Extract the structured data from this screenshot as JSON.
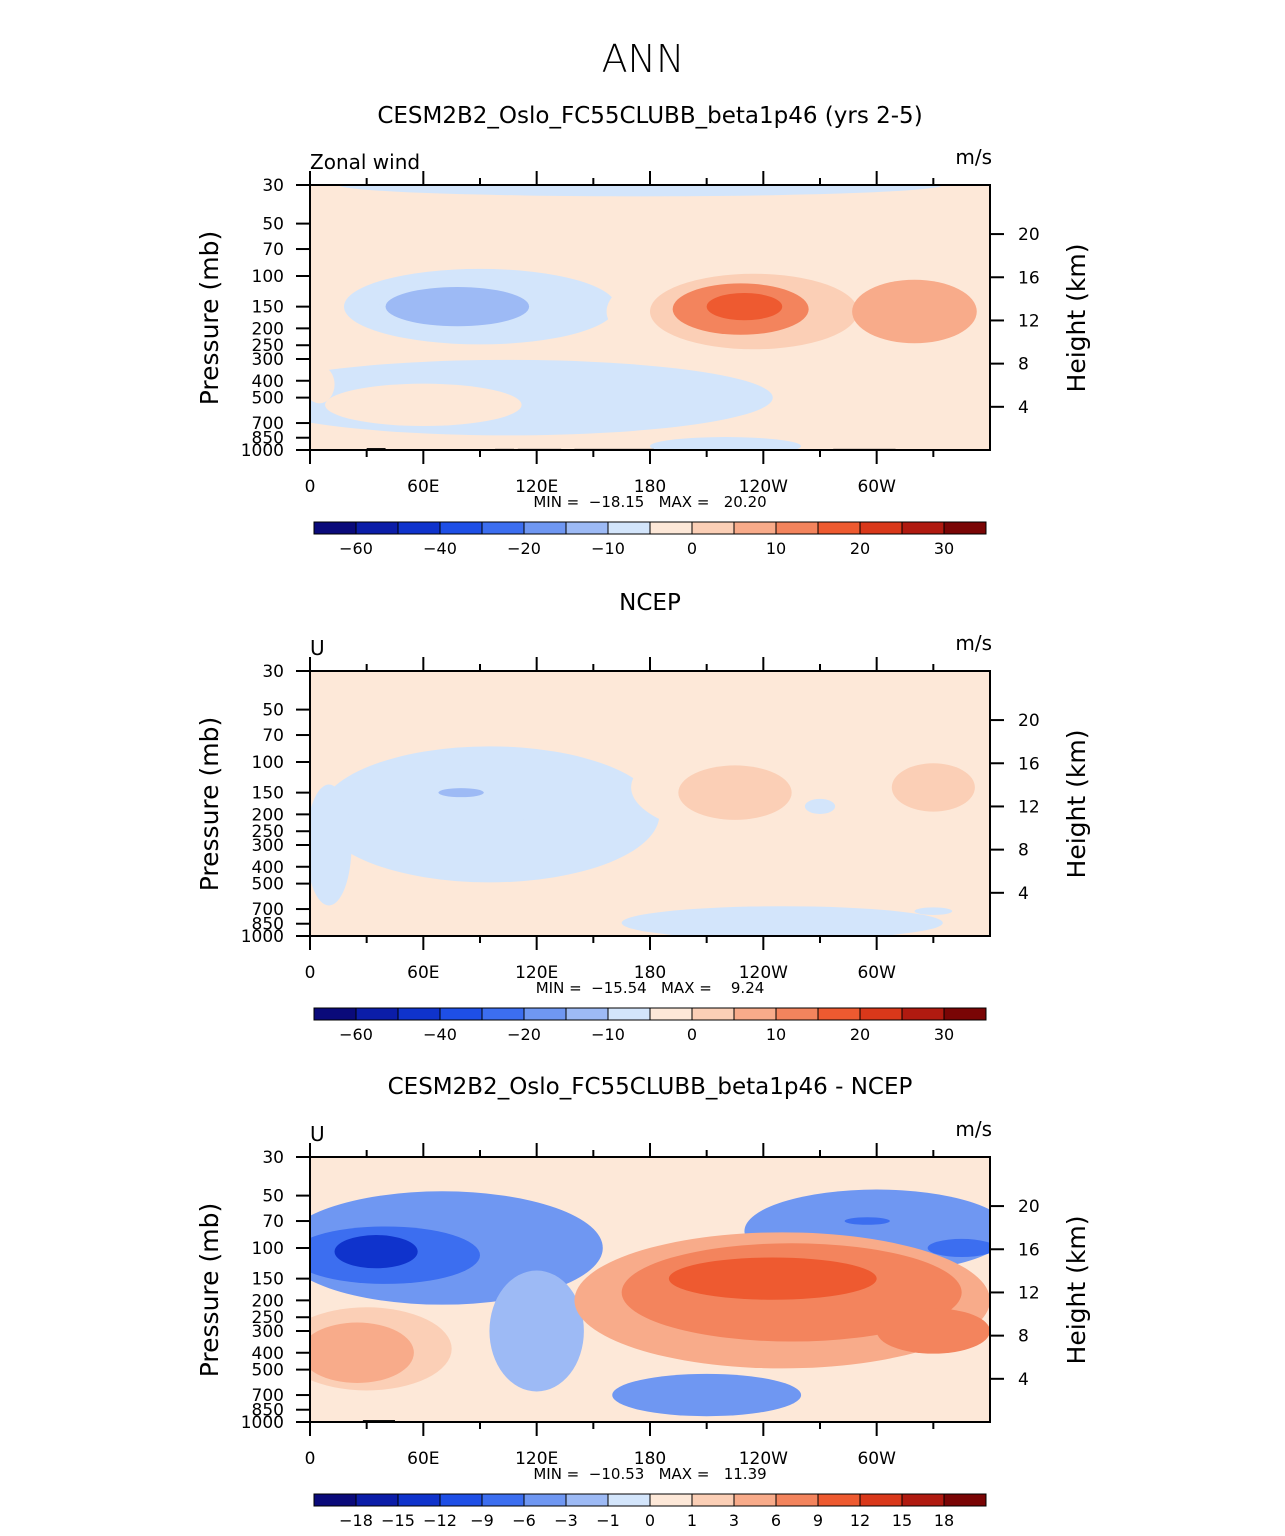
{
  "figure": {
    "title": "ANN"
  },
  "colors": {
    "neg": [
      "#0a0a7a",
      "#0b1da8",
      "#0f33cc",
      "#1e4fe6",
      "#3c6ef0",
      "#6f97f2",
      "#9dbaf5",
      "#d3e5fb"
    ],
    "pos": [
      "#fde8d8",
      "#fbcfb6",
      "#f8ab8a",
      "#f3845d",
      "#ee5a30",
      "#d9381a",
      "#b01a10",
      "#7a0505"
    ]
  },
  "chart_data": [
    {
      "type": "heatmap",
      "title": "CESM2B2_Oslo_FC55CLUBB_beta1p46 (yrs 2-5)",
      "left_label": "Zonal wind",
      "units": "m/s",
      "ylabel": "Pressure (mb)",
      "ylabel_right": "Height (km)",
      "stats": "MIN =  −18.15   MAX =   20.20",
      "ylim": [
        1000,
        30
      ],
      "p_ticks": [
        1000,
        850,
        700,
        500,
        400,
        300,
        250,
        200,
        150,
        100,
        70,
        50,
        30
      ],
      "height_ticks": [
        4,
        8,
        12,
        16,
        20
      ],
      "x_ticks": [
        {
          "lon": 0,
          "label": "0"
        },
        {
          "lon": 60,
          "label": "60E"
        },
        {
          "lon": 120,
          "label": "120E"
        },
        {
          "lon": 180,
          "label": "180"
        },
        {
          "lon": 240,
          "label": "120W"
        },
        {
          "lon": 300,
          "label": "60W"
        }
      ],
      "colorbar_labels": [
        "−60",
        "−40",
        "−20",
        "−10",
        "0",
        "10",
        "20",
        "30"
      ],
      "topography": [
        [
          8,
          30,
          990
        ],
        [
          30,
          40,
          975
        ],
        [
          40,
          43,
          990
        ],
        [
          98,
          108,
          985
        ],
        [
          110,
          133,
          985
        ],
        [
          140,
          182,
          985
        ],
        [
          277,
          310,
          985
        ]
      ],
      "features": [
        {
          "lon": 175,
          "p": 30,
          "rlon": 160,
          "rp": 0.15,
          "value": -2
        },
        {
          "lon": 90,
          "p": 150,
          "rlon": 72,
          "rp": 0.5,
          "value": -2
        },
        {
          "lon": 90,
          "p": 160,
          "rlon": 55,
          "rp": 0.36,
          "value": -6
        },
        {
          "lon": 78,
          "p": 150,
          "rlon": 38,
          "rp": 0.26,
          "value": -13
        },
        {
          "lon": 105,
          "p": 500,
          "rlon": 140,
          "rp": 0.5,
          "value": -2
        },
        {
          "lon": 220,
          "p": 950,
          "rlon": 40,
          "rp": 0.12,
          "value": -4
        },
        {
          "lon": 245,
          "p": 160,
          "rlon": 88,
          "rp": 0.75,
          "value": 3
        },
        {
          "lon": 235,
          "p": 160,
          "rlon": 55,
          "rp": 0.5,
          "value": 9
        },
        {
          "lon": 228,
          "p": 155,
          "rlon": 36,
          "rp": 0.34,
          "value": 16
        },
        {
          "lon": 230,
          "p": 150,
          "rlon": 20,
          "rp": 0.18,
          "value": 22
        },
        {
          "lon": 320,
          "p": 160,
          "rlon": 33,
          "rp": 0.42,
          "value": 11
        },
        {
          "lon": 60,
          "p": 550,
          "rlon": 52,
          "rp": 0.28,
          "value": 4
        },
        {
          "lon": 5,
          "p": 420,
          "rlon": 8,
          "rp": 0.25,
          "value": 3
        }
      ]
    },
    {
      "type": "heatmap",
      "title": "NCEP",
      "left_label": "U",
      "units": "m/s",
      "ylabel": "Pressure (mb)",
      "ylabel_right": "Height (km)",
      "stats": "MIN =  −15.54   MAX =    9.24",
      "ylim": [
        1000,
        30
      ],
      "p_ticks": [
        1000,
        850,
        700,
        500,
        400,
        300,
        250,
        200,
        150,
        100,
        70,
        50,
        30
      ],
      "height_ticks": [
        4,
        8,
        12,
        16,
        20
      ],
      "x_ticks": [
        {
          "lon": 0,
          "label": "0"
        },
        {
          "lon": 60,
          "label": "60E"
        },
        {
          "lon": 120,
          "label": "120E"
        },
        {
          "lon": 180,
          "label": "180"
        },
        {
          "lon": 240,
          "label": "120W"
        },
        {
          "lon": 300,
          "label": "60W"
        }
      ],
      "colorbar_labels": [
        "−60",
        "−40",
        "−20",
        "−10",
        "0",
        "10",
        "20",
        "30"
      ],
      "topography": [],
      "features": [
        {
          "lon": 95,
          "p": 200,
          "rlon": 90,
          "rp": 0.9,
          "value": -2
        },
        {
          "lon": 95,
          "p": 150,
          "rlon": 48,
          "rp": 0.38,
          "value": -6
        },
        {
          "lon": 80,
          "p": 150,
          "rlon": 12,
          "rp": 0.06,
          "value": -11
        },
        {
          "lon": 250,
          "p": 840,
          "rlon": 85,
          "rp": 0.22,
          "value": -2
        },
        {
          "lon": 330,
          "p": 720,
          "rlon": 10,
          "rp": 0.05,
          "value": -6
        },
        {
          "lon": 10,
          "p": 300,
          "rlon": 12,
          "rp": 0.8,
          "value": -2
        },
        {
          "lon": 250,
          "p": 140,
          "rlon": 80,
          "rp": 0.72,
          "value": 3
        },
        {
          "lon": 225,
          "p": 150,
          "rlon": 30,
          "rp": 0.36,
          "value": 6
        },
        {
          "lon": 330,
          "p": 140,
          "rlon": 22,
          "rp": 0.32,
          "value": 6
        },
        {
          "lon": 270,
          "p": 180,
          "rlon": 8,
          "rp": 0.1,
          "value": -2
        },
        {
          "lon": 90,
          "p": 650,
          "rlon": 55,
          "rp": 0.25,
          "value": 2
        }
      ]
    },
    {
      "type": "heatmap",
      "title": "CESM2B2_Oslo_FC55CLUBB_beta1p46 - NCEP",
      "left_label": "U",
      "units": "m/s",
      "ylabel": "Pressure (mb)",
      "ylabel_right": "Height (km)",
      "stats": "MIN =  −10.53   MAX =   11.39",
      "ylim": [
        1000,
        30
      ],
      "p_ticks": [
        1000,
        850,
        700,
        500,
        400,
        300,
        250,
        200,
        150,
        100,
        70,
        50,
        30
      ],
      "height_ticks": [
        4,
        8,
        12,
        16,
        20
      ],
      "x_ticks": [
        {
          "lon": 0,
          "label": "0"
        },
        {
          "lon": 60,
          "label": "60E"
        },
        {
          "lon": 120,
          "label": "120E"
        },
        {
          "lon": 180,
          "label": "180"
        },
        {
          "lon": 240,
          "label": "120W"
        },
        {
          "lon": 300,
          "label": "60W"
        }
      ],
      "colorbar_labels": [
        "−18",
        "−15",
        "−12",
        "−9",
        "−6",
        "−3",
        "−1",
        "0",
        "1",
        "3",
        "6",
        "9",
        "12",
        "15",
        "18"
      ],
      "topography": [
        [
          6,
          28,
          990
        ],
        [
          28,
          45,
          975
        ],
        [
          45,
          46,
          990
        ],
        [
          95,
          135,
          990
        ],
        [
          138,
          183,
          990
        ],
        [
          275,
          312,
          990
        ]
      ],
      "features": [
        {
          "lon": 70,
          "p": 100,
          "rlon": 85,
          "rp": 0.75,
          "value": -4
        },
        {
          "lon": 40,
          "p": 110,
          "rlon": 50,
          "rp": 0.38,
          "value": -8
        },
        {
          "lon": 35,
          "p": 105,
          "rlon": 22,
          "rp": 0.22,
          "value": -12
        },
        {
          "lon": 300,
          "p": 80,
          "rlon": 70,
          "rp": 0.55,
          "value": -4
        },
        {
          "lon": 345,
          "p": 100,
          "rlon": 18,
          "rp": 0.12,
          "value": -8
        },
        {
          "lon": 295,
          "p": 70,
          "rlon": 12,
          "rp": 0.05,
          "value": -8
        },
        {
          "lon": 210,
          "p": 700,
          "rlon": 50,
          "rp": 0.28,
          "value": -4
        },
        {
          "lon": 120,
          "p": 300,
          "rlon": 25,
          "rp": 0.8,
          "value": -1.5
        },
        {
          "lon": 250,
          "p": 200,
          "rlon": 110,
          "rp": 0.9,
          "value": 4
        },
        {
          "lon": 255,
          "p": 180,
          "rlon": 90,
          "rp": 0.65,
          "value": 7
        },
        {
          "lon": 245,
          "p": 150,
          "rlon": 55,
          "rp": 0.28,
          "value": 10
        },
        {
          "lon": 330,
          "p": 300,
          "rlon": 30,
          "rp": 0.3,
          "value": 7
        },
        {
          "lon": 30,
          "p": 380,
          "rlon": 45,
          "rp": 0.55,
          "value": 3
        },
        {
          "lon": 25,
          "p": 400,
          "rlon": 30,
          "rp": 0.4,
          "value": 5
        }
      ]
    }
  ]
}
